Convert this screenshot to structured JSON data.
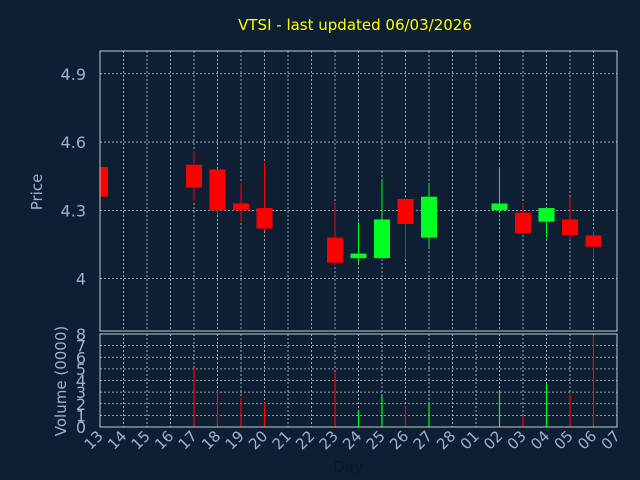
{
  "title": "VTSI - last updated 06/03/2026",
  "colors": {
    "background": "#0f1f33",
    "title": "#ffff00",
    "axis_text": "#9fb2cc",
    "up": "#00ff22",
    "down": "#ff0000",
    "grid": "#c0c8d4"
  },
  "chart_data": [
    {
      "type": "candlestick",
      "ylabel": "Price",
      "ylim": [
        3.77,
        5.0
      ],
      "yticks": [
        4,
        4.3,
        4.6,
        4.9
      ],
      "ytick_labels": [
        "4",
        "4.3",
        "4.6",
        "4.9"
      ],
      "grid": true,
      "x_categories": [
        "13",
        "14",
        "15",
        "16",
        "17",
        "18",
        "19",
        "20",
        "21",
        "22",
        "23",
        "24",
        "25",
        "26",
        "27",
        "28",
        "01",
        "02",
        "03",
        "04",
        "05",
        "06",
        "07"
      ],
      "candles": [
        {
          "x": "13",
          "open": 4.49,
          "high": 4.49,
          "low": 4.36,
          "close": 4.36
        },
        {
          "x": "17",
          "open": 4.5,
          "high": 4.56,
          "low": 4.34,
          "close": 4.4
        },
        {
          "x": "18",
          "open": 4.48,
          "high": 4.48,
          "low": 4.28,
          "close": 4.3
        },
        {
          "x": "19",
          "open": 4.33,
          "high": 4.42,
          "low": 4.25,
          "close": 4.3
        },
        {
          "x": "20",
          "open": 4.31,
          "high": 4.51,
          "low": 4.21,
          "close": 4.22
        },
        {
          "x": "23",
          "open": 4.18,
          "high": 4.33,
          "low": 4.06,
          "close": 4.07
        },
        {
          "x": "24",
          "open": 4.09,
          "high": 4.25,
          "low": 4.07,
          "close": 4.11
        },
        {
          "x": "25",
          "open": 4.09,
          "high": 4.44,
          "low": 4.09,
          "close": 4.26
        },
        {
          "x": "26",
          "open": 4.35,
          "high": 4.35,
          "low": 4.09,
          "close": 4.24
        },
        {
          "x": "27",
          "open": 4.18,
          "high": 4.41,
          "low": 4.14,
          "close": 4.36
        },
        {
          "x": "02",
          "open": 4.3,
          "high": 4.49,
          "low": 4.29,
          "close": 4.33
        },
        {
          "x": "03",
          "open": 4.29,
          "high": 4.33,
          "low": 4.2,
          "close": 4.2
        },
        {
          "x": "04",
          "open": 4.25,
          "high": 4.31,
          "low": 4.18,
          "close": 4.31
        },
        {
          "x": "05",
          "open": 4.26,
          "high": 4.36,
          "low": 4.17,
          "close": 4.19
        },
        {
          "x": "06",
          "open": 4.19,
          "high": 4.21,
          "low": 4.09,
          "close": 4.14
        }
      ]
    },
    {
      "type": "bar",
      "ylabel": "Volume (0000)",
      "xlabel": "Day",
      "ylim": [
        0,
        8
      ],
      "yticks": [
        0,
        1,
        2,
        3,
        4,
        5,
        6,
        7,
        8
      ],
      "ytick_labels": [
        "0",
        "1",
        "2",
        "3",
        "4",
        "5",
        "6",
        "7",
        "8"
      ],
      "grid": true,
      "x_categories": [
        "13",
        "14",
        "15",
        "16",
        "17",
        "18",
        "19",
        "20",
        "21",
        "22",
        "23",
        "24",
        "25",
        "26",
        "27",
        "28",
        "01",
        "02",
        "03",
        "04",
        "05",
        "06",
        "07"
      ],
      "bars": [
        {
          "x": "13",
          "value": 0.1,
          "dir": "down"
        },
        {
          "x": "17",
          "value": 5.1,
          "dir": "down"
        },
        {
          "x": "18",
          "value": 3.1,
          "dir": "down"
        },
        {
          "x": "19",
          "value": 2.5,
          "dir": "down"
        },
        {
          "x": "20",
          "value": 2.1,
          "dir": "down"
        },
        {
          "x": "23",
          "value": 4.7,
          "dir": "down"
        },
        {
          "x": "24",
          "value": 1.4,
          "dir": "up"
        },
        {
          "x": "25",
          "value": 2.7,
          "dir": "up"
        },
        {
          "x": "26",
          "value": 1.8,
          "dir": "down"
        },
        {
          "x": "27",
          "value": 2.1,
          "dir": "up"
        },
        {
          "x": "02",
          "value": 3.1,
          "dir": "up"
        },
        {
          "x": "03",
          "value": 1.0,
          "dir": "down"
        },
        {
          "x": "04",
          "value": 3.7,
          "dir": "up"
        },
        {
          "x": "05",
          "value": 2.9,
          "dir": "down"
        },
        {
          "x": "06",
          "value": 7.9,
          "dir": "down"
        }
      ]
    }
  ]
}
